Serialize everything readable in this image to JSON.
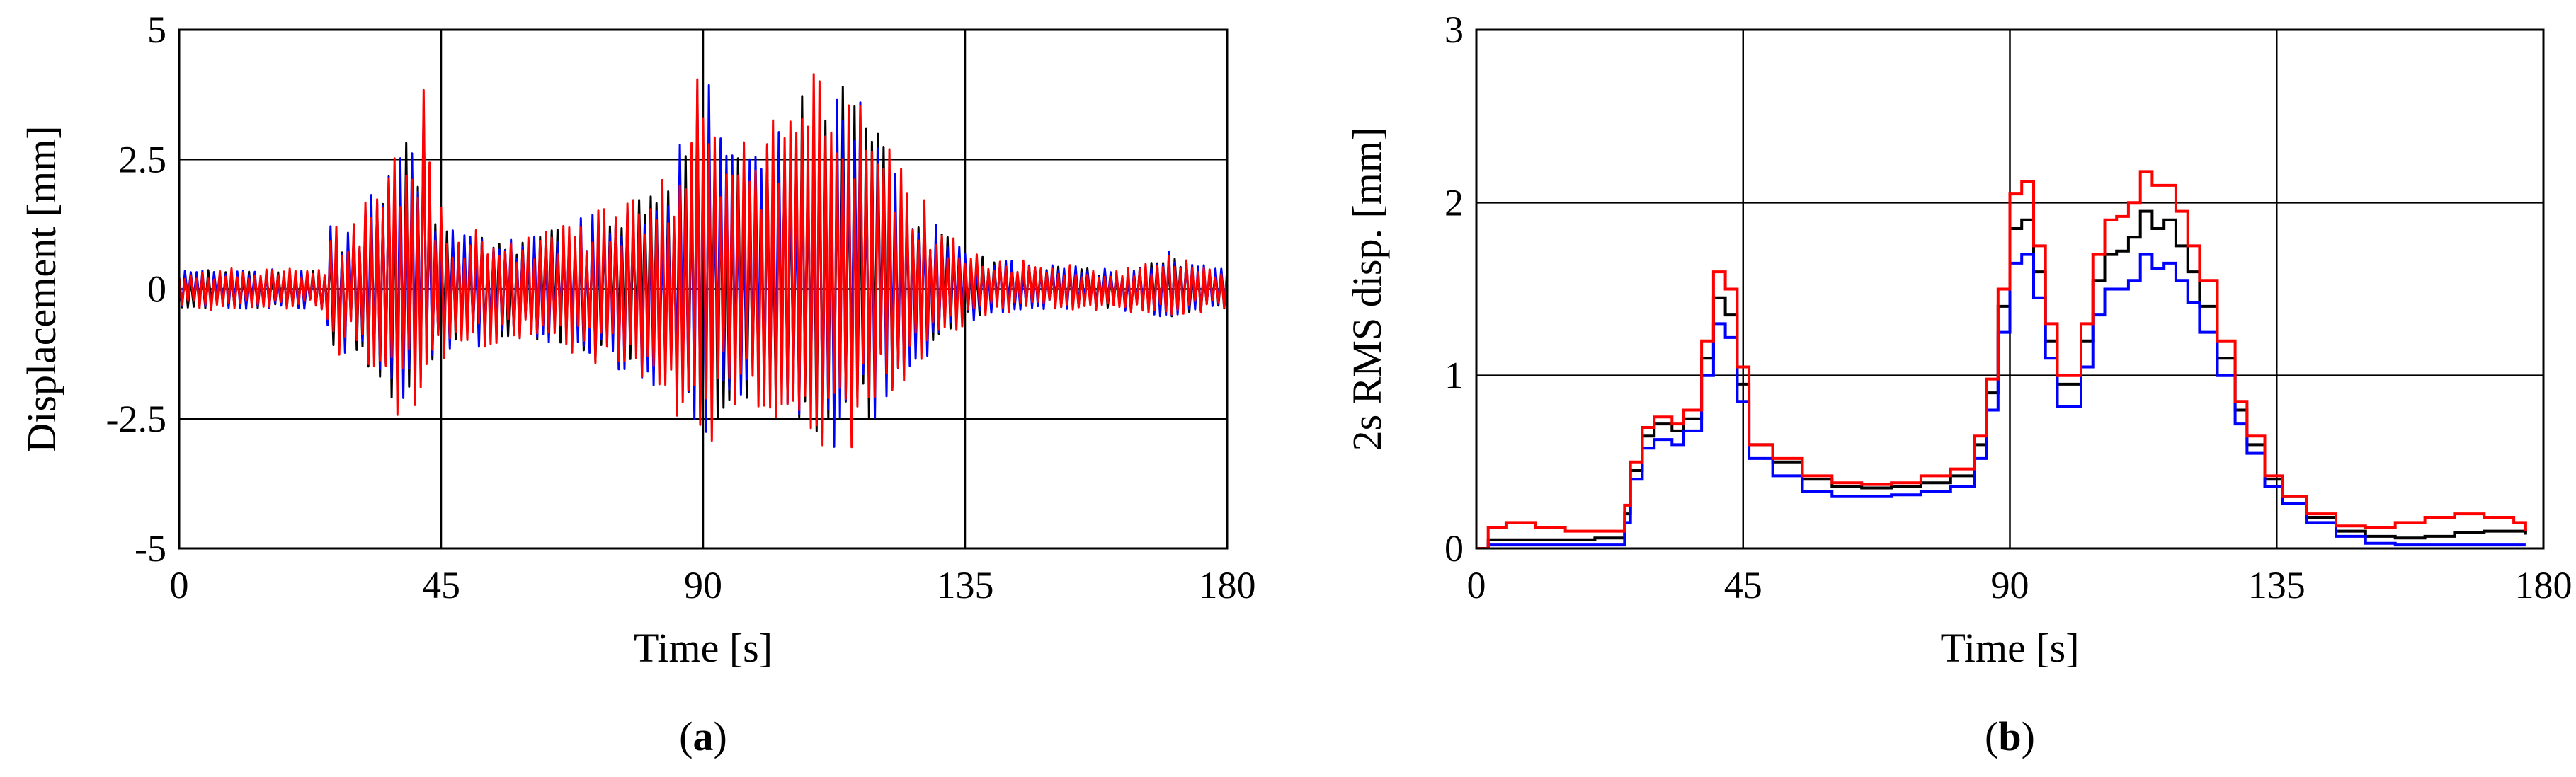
{
  "chart_data": [
    {
      "id": "a",
      "type": "line",
      "panel_label": "a",
      "xlabel": "Time [s]",
      "ylabel": "Displacement [mm]",
      "xlim": [
        0,
        180
      ],
      "ylim": [
        -5,
        5
      ],
      "xticks": [
        0,
        45,
        90,
        135,
        180
      ],
      "yticks": [
        -5,
        -2.5,
        0,
        2.5,
        5
      ],
      "ytick_labels": [
        "-5",
        "-2.5",
        "0",
        "2.5",
        "5"
      ],
      "grid": true,
      "dt": 0.5,
      "envelope": {
        "t": [
          0,
          25,
          26,
          30,
          33,
          37,
          38,
          40,
          42,
          44,
          46,
          50,
          55,
          60,
          65,
          70,
          75,
          80,
          85,
          88,
          90,
          92,
          95,
          100,
          105,
          108,
          110,
          112,
          115,
          118,
          120,
          122,
          125,
          130,
          135,
          140,
          150,
          160,
          165,
          170,
          175,
          180
        ],
        "upper": [
          0.4,
          0.4,
          1.4,
          1.4,
          2.0,
          2.9,
          3.3,
          3.0,
          4.0,
          2.0,
          1.3,
          1.2,
          1.1,
          1.0,
          1.3,
          1.6,
          1.8,
          2.0,
          2.6,
          3.5,
          4.6,
          3.8,
          2.8,
          3.0,
          3.7,
          4.3,
          4.1,
          4.4,
          4.5,
          3.7,
          3.3,
          2.7,
          2.3,
          1.4,
          0.8,
          0.6,
          0.5,
          0.4,
          0.5,
          0.8,
          0.5,
          0.4
        ],
        "lower": [
          -0.4,
          -0.4,
          -1.2,
          -1.4,
          -1.8,
          -2.4,
          -2.5,
          -2.4,
          -2.0,
          -1.6,
          -1.3,
          -1.2,
          -1.1,
          -1.0,
          -1.2,
          -1.5,
          -1.6,
          -1.8,
          -2.4,
          -3.0,
          -3.1,
          -3.0,
          -2.2,
          -2.5,
          -2.8,
          -3.0,
          -3.1,
          -3.2,
          -3.1,
          -2.9,
          -2.6,
          -2.3,
          -1.8,
          -1.2,
          -0.7,
          -0.5,
          -0.4,
          -0.4,
          -0.5,
          -0.6,
          -0.5,
          -0.4
        ]
      },
      "series": [
        {
          "color": "#000000",
          "scale": 0.92
        },
        {
          "color": "#0000ff",
          "scale": 0.96
        },
        {
          "color": "#ff0000",
          "scale": 1.0
        }
      ]
    },
    {
      "id": "b",
      "type": "line",
      "panel_label": "b",
      "xlabel": "Time [s]",
      "ylabel": "2s RMS disp. [mm]",
      "xlim": [
        0,
        180
      ],
      "ylim": [
        0,
        3
      ],
      "xticks": [
        0,
        45,
        90,
        135,
        180
      ],
      "yticks": [
        0,
        1,
        2,
        3
      ],
      "ytick_labels": [
        "0",
        "1",
        "2",
        "3"
      ],
      "grid": true,
      "series": [
        {
          "color": "#000000",
          "x": [
            0,
            2,
            5,
            10,
            15,
            20,
            24,
            25,
            26,
            28,
            30,
            33,
            35,
            38,
            40,
            42,
            44,
            46,
            50,
            55,
            60,
            65,
            70,
            75,
            80,
            84,
            86,
            88,
            90,
            92,
            94,
            96,
            98,
            100,
            102,
            104,
            106,
            108,
            110,
            112,
            114,
            116,
            118,
            120,
            122,
            125,
            128,
            130,
            133,
            136,
            140,
            145,
            150,
            155,
            160,
            165,
            170,
            175,
            177
          ],
          "y": [
            0,
            0.05,
            0.05,
            0.05,
            0.05,
            0.06,
            0.06,
            0.2,
            0.45,
            0.65,
            0.72,
            0.68,
            0.75,
            1.1,
            1.45,
            1.35,
            0.95,
            0.6,
            0.5,
            0.4,
            0.36,
            0.35,
            0.36,
            0.38,
            0.42,
            0.6,
            0.9,
            1.4,
            1.85,
            1.9,
            1.6,
            1.2,
            0.95,
            0.95,
            1.2,
            1.55,
            1.7,
            1.72,
            1.8,
            1.95,
            1.85,
            1.9,
            1.75,
            1.6,
            1.4,
            1.1,
            0.8,
            0.6,
            0.4,
            0.3,
            0.18,
            0.1,
            0.07,
            0.06,
            0.07,
            0.09,
            0.1,
            0.1,
            0.08
          ]
        },
        {
          "color": "#0000ff",
          "x": [
            0,
            2,
            5,
            10,
            15,
            20,
            24,
            25,
            26,
            28,
            30,
            33,
            35,
            38,
            40,
            42,
            44,
            46,
            50,
            55,
            60,
            65,
            70,
            75,
            80,
            84,
            86,
            88,
            90,
            92,
            94,
            96,
            98,
            100,
            102,
            104,
            106,
            108,
            110,
            112,
            114,
            116,
            118,
            120,
            122,
            125,
            128,
            130,
            133,
            136,
            140,
            145,
            150,
            155,
            160,
            165,
            170,
            175,
            177
          ],
          "y": [
            0,
            0.02,
            0.02,
            0.02,
            0.02,
            0.02,
            0.02,
            0.15,
            0.4,
            0.58,
            0.63,
            0.6,
            0.68,
            1.0,
            1.3,
            1.22,
            0.85,
            0.52,
            0.42,
            0.33,
            0.3,
            0.3,
            0.31,
            0.33,
            0.36,
            0.52,
            0.8,
            1.25,
            1.65,
            1.7,
            1.45,
            1.1,
            0.82,
            0.82,
            1.05,
            1.35,
            1.5,
            1.5,
            1.55,
            1.7,
            1.62,
            1.65,
            1.55,
            1.42,
            1.25,
            1.0,
            0.72,
            0.55,
            0.36,
            0.26,
            0.15,
            0.07,
            0.03,
            0.02,
            0.02,
            0.02,
            0.02,
            0.02,
            0.02
          ]
        },
        {
          "color": "#ff0000",
          "x": [
            0,
            2,
            5,
            10,
            15,
            20,
            24,
            25,
            26,
            28,
            30,
            33,
            35,
            38,
            40,
            42,
            44,
            46,
            50,
            55,
            60,
            65,
            70,
            75,
            80,
            84,
            86,
            88,
            90,
            92,
            94,
            96,
            98,
            100,
            102,
            104,
            106,
            108,
            110,
            112,
            114,
            116,
            118,
            120,
            122,
            125,
            128,
            130,
            133,
            136,
            140,
            145,
            150,
            155,
            160,
            165,
            170,
            175,
            177
          ],
          "y": [
            0,
            0.12,
            0.15,
            0.12,
            0.1,
            0.1,
            0.1,
            0.25,
            0.5,
            0.7,
            0.76,
            0.72,
            0.8,
            1.2,
            1.6,
            1.5,
            1.05,
            0.6,
            0.52,
            0.42,
            0.38,
            0.37,
            0.38,
            0.42,
            0.46,
            0.65,
            0.98,
            1.5,
            2.05,
            2.12,
            1.75,
            1.3,
            1.0,
            1.0,
            1.3,
            1.7,
            1.9,
            1.92,
            2.0,
            2.18,
            2.1,
            2.1,
            1.95,
            1.75,
            1.55,
            1.2,
            0.85,
            0.65,
            0.42,
            0.3,
            0.2,
            0.13,
            0.12,
            0.15,
            0.18,
            0.2,
            0.18,
            0.15,
            0.1
          ]
        }
      ]
    }
  ]
}
